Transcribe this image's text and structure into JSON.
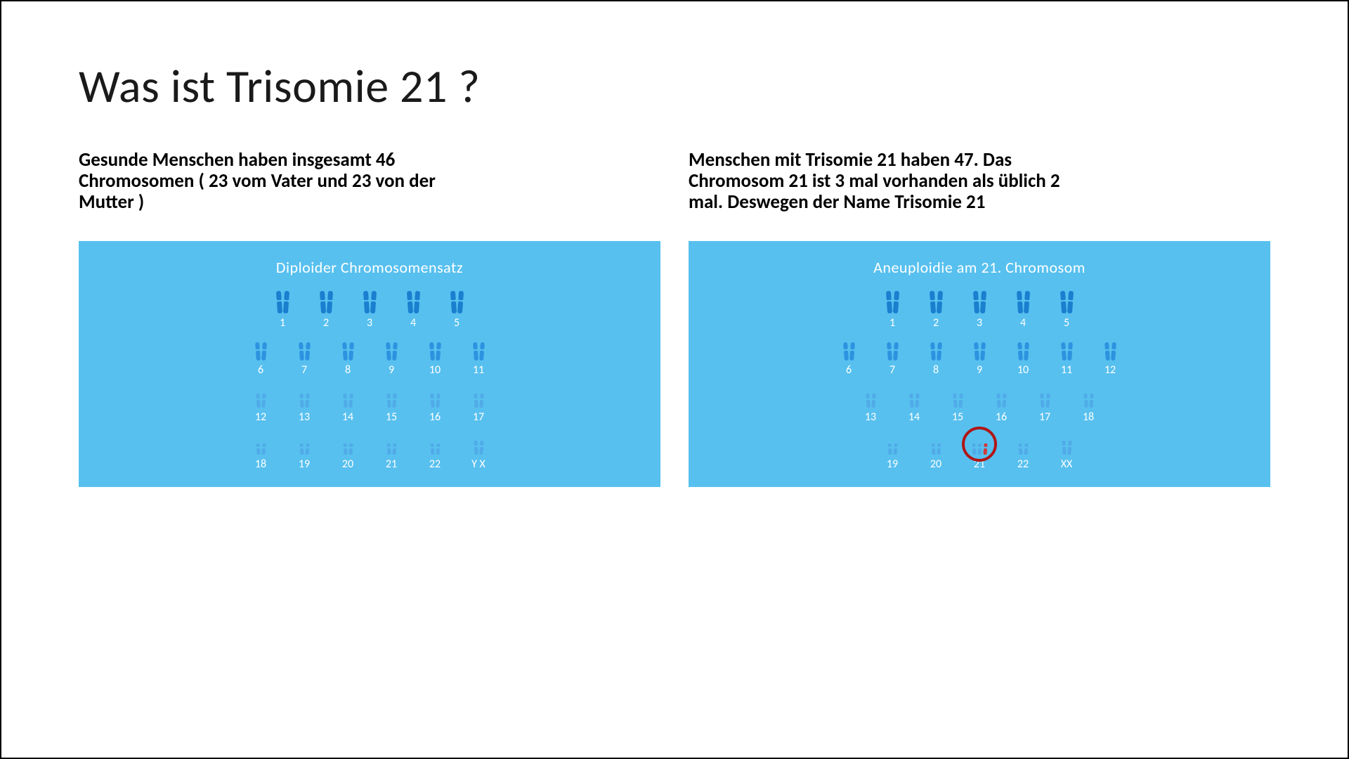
{
  "title": "Was ist Trisomie 21 ?",
  "colors": {
    "panel_bg": "#57c0ef",
    "chrom_dark": "#1a7fcf",
    "chrom_mid": "#2d93e0",
    "chrom_light": "#50abe8",
    "chrom_extra": "#d23a3a",
    "circle": "#b01616",
    "text_white": "#ffffff",
    "text_black": "#000000",
    "page_bg": "#ffffff",
    "border": "#000000"
  },
  "left": {
    "desc": "Gesunde Menschen haben insgesamt 46 Chromosomen ( 23 vom Vater und 23 von der Mutter )",
    "panel_title": "Diploider Chromosomensatz",
    "rows": [
      [
        {
          "label": "1",
          "count": 2,
          "size": "l",
          "shade": "dark"
        },
        {
          "label": "2",
          "count": 2,
          "size": "l",
          "shade": "dark"
        },
        {
          "label": "3",
          "count": 2,
          "size": "l",
          "shade": "dark"
        },
        {
          "label": "4",
          "count": 2,
          "size": "l",
          "shade": "dark"
        },
        {
          "label": "5",
          "count": 2,
          "size": "l",
          "shade": "dark"
        }
      ],
      [
        {
          "label": "6",
          "count": 2,
          "size": "m",
          "shade": "mid"
        },
        {
          "label": "7",
          "count": 2,
          "size": "m",
          "shade": "mid"
        },
        {
          "label": "8",
          "count": 2,
          "size": "m",
          "shade": "mid"
        },
        {
          "label": "9",
          "count": 2,
          "size": "m",
          "shade": "mid"
        },
        {
          "label": "10",
          "count": 2,
          "size": "m",
          "shade": "mid"
        },
        {
          "label": "11",
          "count": 2,
          "size": "m",
          "shade": "mid"
        }
      ],
      [
        {
          "label": "12",
          "count": 2,
          "size": "s",
          "shade": "light"
        },
        {
          "label": "13",
          "count": 2,
          "size": "s",
          "shade": "light"
        },
        {
          "label": "14",
          "count": 2,
          "size": "s",
          "shade": "light"
        },
        {
          "label": "15",
          "count": 2,
          "size": "s",
          "shade": "light"
        },
        {
          "label": "16",
          "count": 2,
          "size": "s",
          "shade": "light"
        },
        {
          "label": "17",
          "count": 2,
          "size": "s",
          "shade": "light"
        }
      ],
      [
        {
          "label": "18",
          "count": 2,
          "size": "xs",
          "shade": "light"
        },
        {
          "label": "19",
          "count": 2,
          "size": "xs",
          "shade": "light"
        },
        {
          "label": "20",
          "count": 2,
          "size": "xs",
          "shade": "light"
        },
        {
          "label": "21",
          "count": 2,
          "size": "xs",
          "shade": "light"
        },
        {
          "label": "22",
          "count": 2,
          "size": "xs",
          "shade": "light"
        },
        {
          "label": "Y X",
          "count": 2,
          "size": "s",
          "shade": "light"
        }
      ]
    ]
  },
  "right": {
    "desc": "Menschen mit Trisomie 21 haben 47. Das Chromosom 21 ist 3 mal vorhanden als üblich 2 mal. Deswegen der Name Trisomie 21",
    "panel_title": "Aneuploidie am 21. Chromosom",
    "rows": [
      [
        {
          "label": "1",
          "count": 2,
          "size": "l",
          "shade": "dark"
        },
        {
          "label": "2",
          "count": 2,
          "size": "l",
          "shade": "dark"
        },
        {
          "label": "3",
          "count": 2,
          "size": "l",
          "shade": "dark"
        },
        {
          "label": "4",
          "count": 2,
          "size": "l",
          "shade": "dark"
        },
        {
          "label": "5",
          "count": 2,
          "size": "l",
          "shade": "dark"
        }
      ],
      [
        {
          "label": "6",
          "count": 2,
          "size": "m",
          "shade": "mid"
        },
        {
          "label": "7",
          "count": 2,
          "size": "m",
          "shade": "mid"
        },
        {
          "label": "8",
          "count": 2,
          "size": "m",
          "shade": "mid"
        },
        {
          "label": "9",
          "count": 2,
          "size": "m",
          "shade": "mid"
        },
        {
          "label": "10",
          "count": 2,
          "size": "m",
          "shade": "mid"
        },
        {
          "label": "11",
          "count": 2,
          "size": "m",
          "shade": "mid"
        },
        {
          "label": "12",
          "count": 2,
          "size": "m",
          "shade": "mid"
        }
      ],
      [
        {
          "label": "13",
          "count": 2,
          "size": "s",
          "shade": "light"
        },
        {
          "label": "14",
          "count": 2,
          "size": "s",
          "shade": "light"
        },
        {
          "label": "15",
          "count": 2,
          "size": "s",
          "shade": "light"
        },
        {
          "label": "16",
          "count": 2,
          "size": "s",
          "shade": "light"
        },
        {
          "label": "17",
          "count": 2,
          "size": "s",
          "shade": "light"
        },
        {
          "label": "18",
          "count": 2,
          "size": "s",
          "shade": "light"
        }
      ],
      [
        {
          "label": "19",
          "count": 2,
          "size": "xs",
          "shade": "light"
        },
        {
          "label": "20",
          "count": 2,
          "size": "xs",
          "shade": "light"
        },
        {
          "label": "21",
          "count": 3,
          "size": "xs",
          "shade": "light",
          "highlight": true,
          "extra_shade": "extra"
        },
        {
          "label": "22",
          "count": 2,
          "size": "xs",
          "shade": "light"
        },
        {
          "label": "XX",
          "count": 2,
          "size": "s",
          "shade": "light"
        }
      ]
    ]
  }
}
